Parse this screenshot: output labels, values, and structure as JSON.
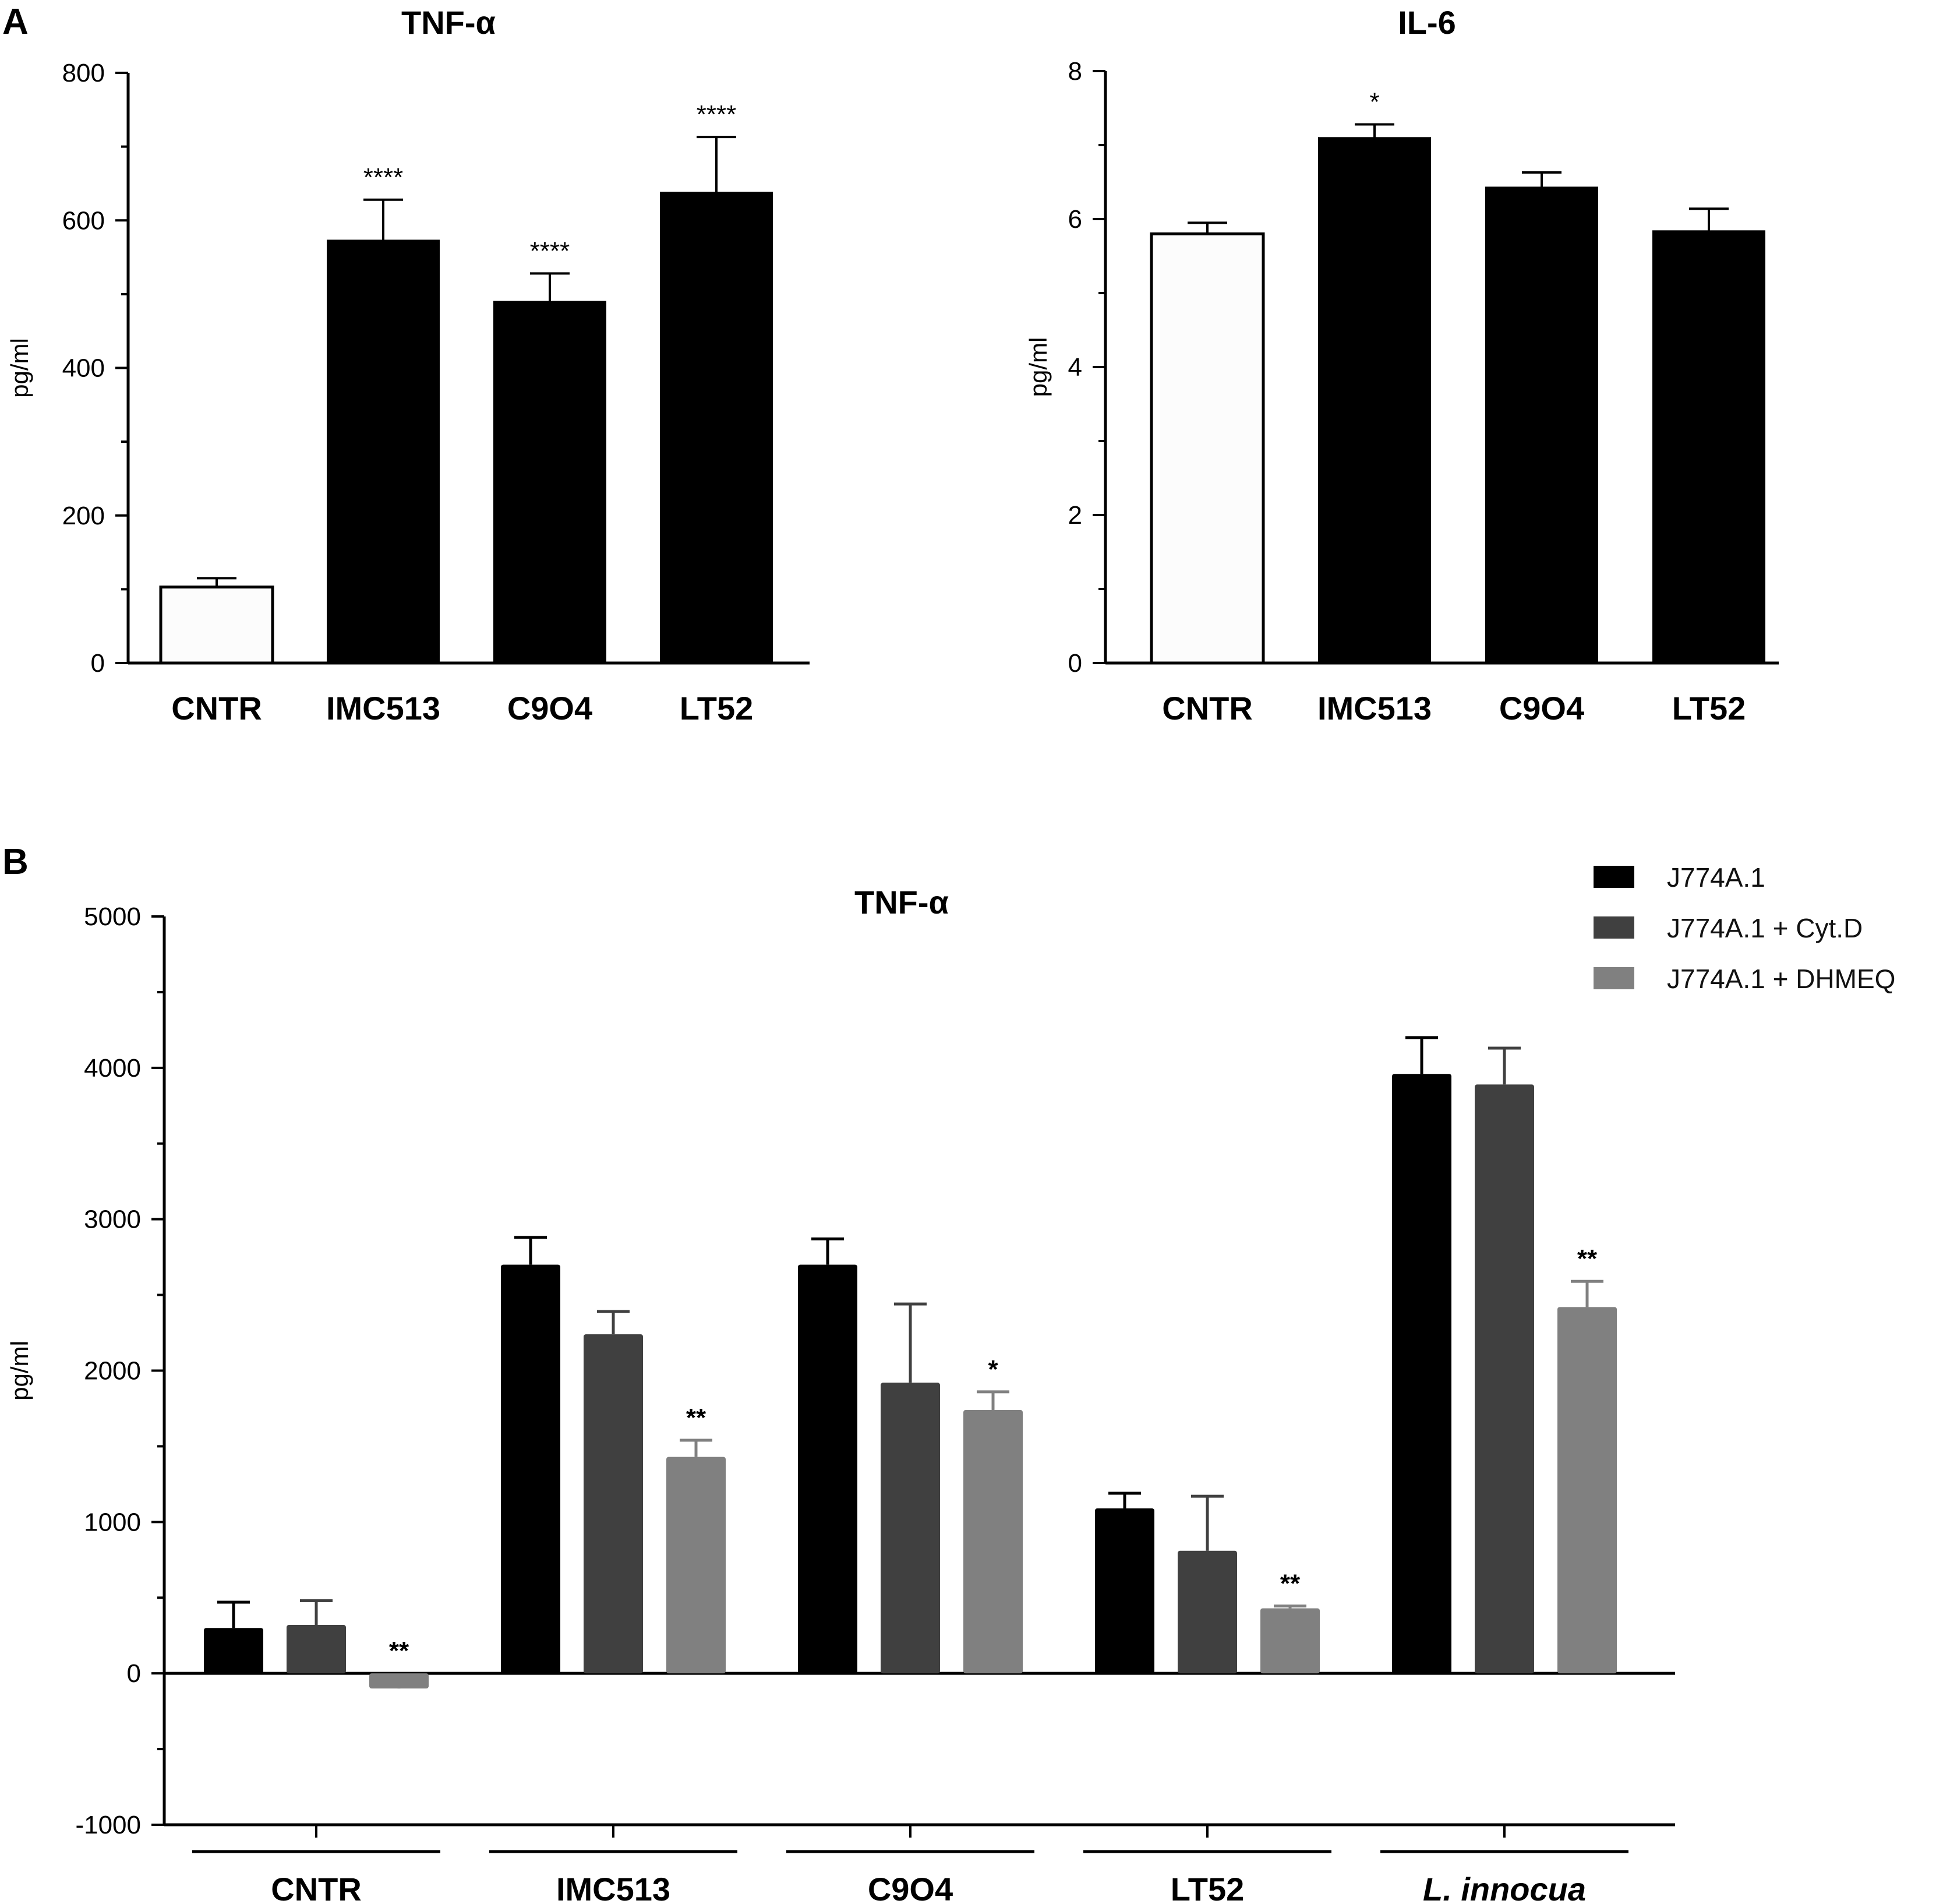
{
  "panels": {
    "a": "A",
    "b": "B"
  },
  "chart_data": [
    {
      "id": "a1",
      "type": "bar",
      "title": "TNF-α",
      "ylabel": "pg/ml",
      "ylim": [
        0,
        800
      ],
      "yticks": [
        "0",
        "200",
        "400",
        "600",
        "800"
      ],
      "ytick_values": [
        0,
        200,
        400,
        600,
        800
      ],
      "categories": [
        "CNTR",
        "IMC513",
        "C9O4",
        "LT52"
      ],
      "values": [
        103,
        573,
        490,
        638
      ],
      "errors": [
        12,
        55,
        38,
        75
      ],
      "significance": [
        "",
        "****",
        "****",
        "****"
      ],
      "bar_colors": [
        "#fcfcfc",
        "#000000",
        "#000000",
        "#000000"
      ]
    },
    {
      "id": "a2",
      "type": "bar",
      "title": "IL-6",
      "ylabel": "pg/ml",
      "ylim": [
        0,
        8
      ],
      "yticks": [
        "0",
        "2",
        "4",
        "6",
        "8"
      ],
      "ytick_values": [
        0,
        2,
        4,
        6,
        8
      ],
      "categories": [
        "CNTR",
        "IMC513",
        "C9O4",
        "LT52"
      ],
      "values": [
        5.8,
        7.1,
        6.43,
        5.84
      ],
      "errors": [
        0.15,
        0.18,
        0.2,
        0.3
      ],
      "significance": [
        "",
        "*",
        "",
        ""
      ],
      "bar_colors": [
        "#fcfcfc",
        "#000000",
        "#000000",
        "#000000"
      ]
    },
    {
      "id": "b",
      "type": "bar",
      "title": "TNF-α",
      "ylabel": "pg/ml",
      "ylim": [
        -1000,
        5000
      ],
      "yticks": [
        "-1000",
        "0",
        "1000",
        "2000",
        "3000",
        "4000",
        "5000"
      ],
      "ytick_values": [
        -1000,
        0,
        1000,
        2000,
        3000,
        4000,
        5000
      ],
      "categories": [
        "CNTR",
        "IMC513",
        "C9O4",
        "LT52",
        "L. innocua"
      ],
      "series": [
        {
          "name": "J774A.1",
          "color": "#000000",
          "values": [
            300,
            2700,
            2700,
            1090,
            3960
          ],
          "errors": [
            170,
            180,
            170,
            100,
            240
          ],
          "significance": [
            "",
            "",
            "",
            "",
            ""
          ]
        },
        {
          "name": "J774A.1 + Cyt.D",
          "color": "#404040",
          "values": [
            320,
            2240,
            1920,
            810,
            3890
          ],
          "errors": [
            160,
            150,
            520,
            360,
            240
          ],
          "significance": [
            "",
            "",
            "",
            "",
            ""
          ]
        },
        {
          "name": "J774A.1 + DHMEQ",
          "color": "#808080",
          "values": [
            -100,
            1430,
            1740,
            430,
            2420
          ],
          "errors": [
            15,
            110,
            120,
            15,
            170
          ],
          "significance": [
            "**",
            "**",
            "*",
            "**",
            "**"
          ]
        }
      ],
      "legend_position": "top-right"
    }
  ]
}
